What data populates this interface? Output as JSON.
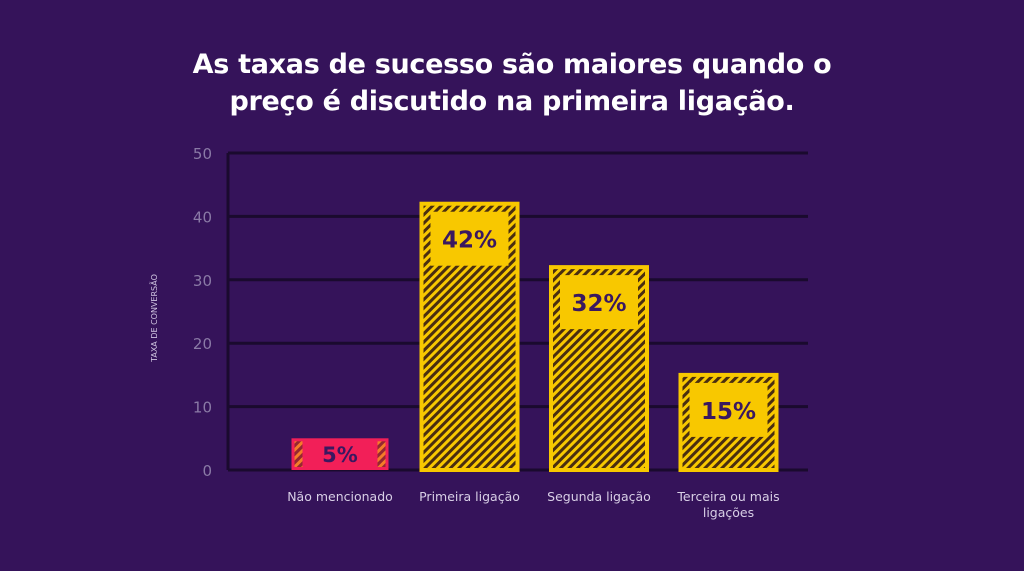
{
  "title_lines": [
    "As taxas de sucesso são maiores quando o",
    "preço é discutido na primeira ligação."
  ],
  "colors": {
    "background": "#35135a",
    "grid": "#1a0a2e",
    "tick_label": "#8a7aa6",
    "category_label": "#d8cfe6",
    "highlight_bar": "#f21f58",
    "bar": "#f8c800",
    "bar_hatch": "#4a2e10",
    "value_text": "#3a1860"
  },
  "chart_data": {
    "type": "bar",
    "title": "As taxas de sucesso são maiores quando o preço é discutido na primeira ligação.",
    "ylabel": "TAXA DE CONVERSÃO",
    "xlabel": "",
    "ylim": [
      0,
      50
    ],
    "yticks": [
      0,
      10,
      20,
      30,
      40,
      50
    ],
    "grid": true,
    "categories": [
      [
        "Não mencionado"
      ],
      [
        "Primeira ligação"
      ],
      [
        "Segunda ligação"
      ],
      [
        "Terceira ou mais",
        "ligações"
      ]
    ],
    "values": [
      5,
      42,
      32,
      15
    ],
    "value_labels": [
      "5%",
      "42%",
      "32%",
      "15%"
    ]
  }
}
